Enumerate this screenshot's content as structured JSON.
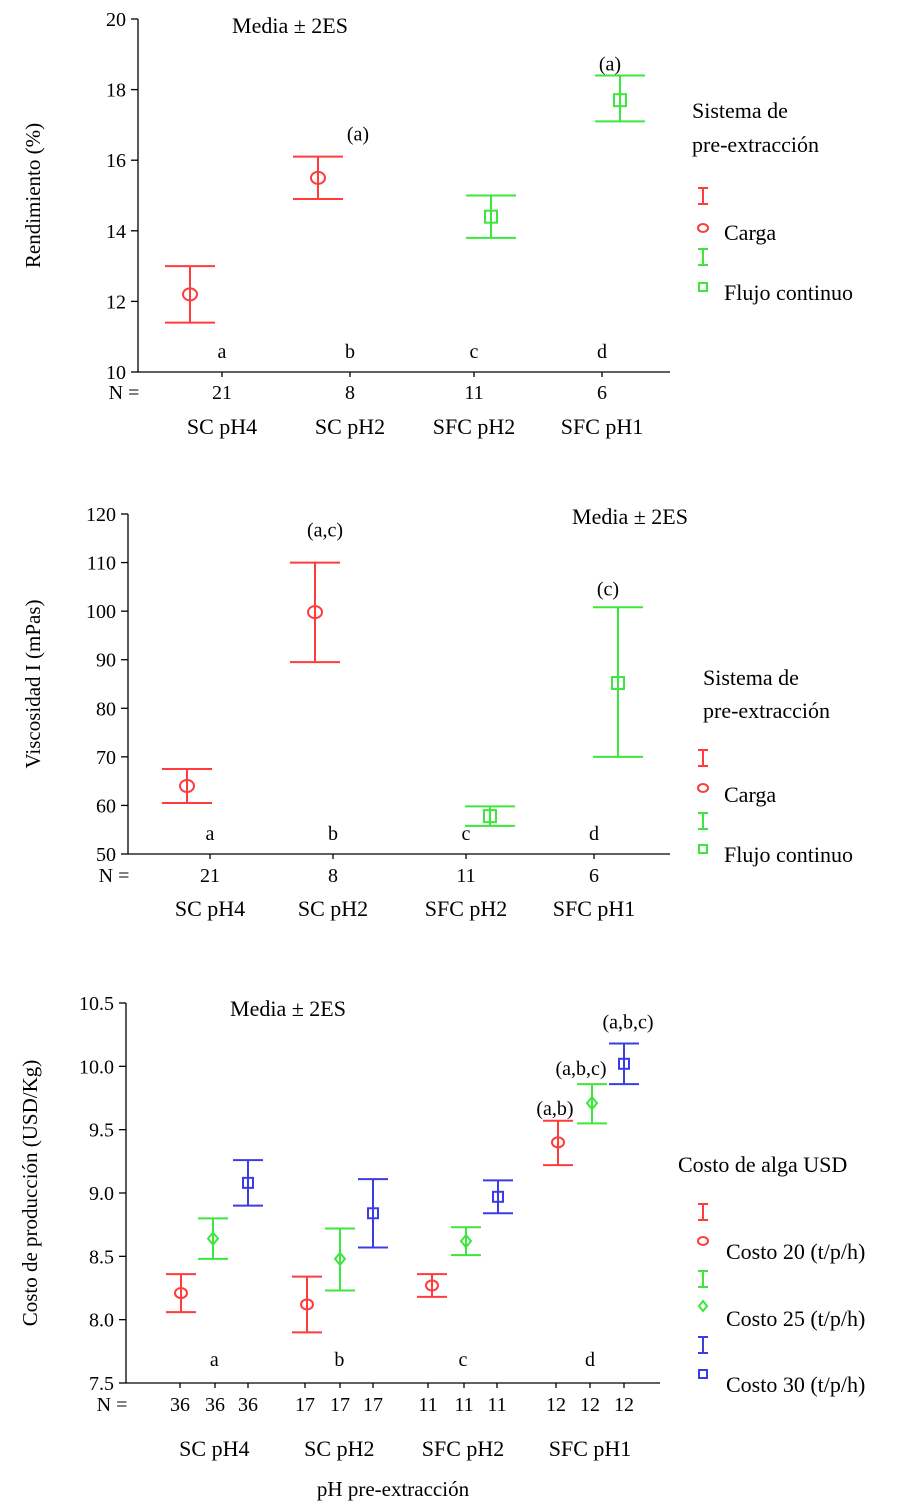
{
  "chart_data": [
    {
      "type": "errorbar",
      "annotation": "Media ± 2ES",
      "ylabel": "Rendimiento (%)",
      "ylim": [
        10,
        20
      ],
      "yticks": [
        "10",
        "12",
        "14",
        "16",
        "18",
        "20"
      ],
      "n_prefix": "N =",
      "categories": [
        "SC pH4",
        "SC pH2",
        "SFC pH2",
        "SFC pH1"
      ],
      "n": [
        "21",
        "8",
        "11",
        "6"
      ],
      "group_letters": [
        "a",
        "b",
        "c",
        "d"
      ],
      "legend_title": [
        "Sistema de",
        "pre-extracción"
      ],
      "series": [
        {
          "name": "Carga",
          "color": "#ff3b3b",
          "marker": "circle",
          "points": [
            {
              "cat": 0,
              "mean": 12.2,
              "lo": 11.4,
              "hi": 13.0,
              "label": ""
            },
            {
              "cat": 1,
              "mean": 15.5,
              "lo": 14.9,
              "hi": 16.1,
              "label": "(a)"
            }
          ]
        },
        {
          "name": "Flujo continuo",
          "color": "#3ce63c",
          "marker": "square",
          "points": [
            {
              "cat": 2,
              "mean": 14.4,
              "lo": 13.8,
              "hi": 15.0,
              "label": ""
            },
            {
              "cat": 3,
              "mean": 17.7,
              "lo": 17.1,
              "hi": 18.4,
              "label": "(a)"
            }
          ]
        }
      ]
    },
    {
      "type": "errorbar",
      "annotation": "Media ± 2ES",
      "ylabel": "Viscosidad I (mPas)",
      "ylim": [
        50,
        120
      ],
      "yticks": [
        "50",
        "60",
        "70",
        "80",
        "90",
        "100",
        "110",
        "120"
      ],
      "n_prefix": "N =",
      "categories": [
        "SC pH4",
        "SC pH2",
        "SFC pH2",
        "SFC pH1"
      ],
      "n": [
        "21",
        "8",
        "11",
        "6"
      ],
      "group_letters": [
        "a",
        "b",
        "c",
        "d"
      ],
      "legend_title": [
        "Sistema de",
        "pre-extracción"
      ],
      "series": [
        {
          "name": "Carga",
          "color": "#ff3b3b",
          "marker": "circle",
          "points": [
            {
              "cat": 0,
              "mean": 64.0,
              "lo": 60.5,
              "hi": 67.5,
              "label": ""
            },
            {
              "cat": 1,
              "mean": 99.8,
              "lo": 89.5,
              "hi": 110.0,
              "label": "(a,c)"
            }
          ]
        },
        {
          "name": "Flujo continuo",
          "color": "#3ce63c",
          "marker": "square",
          "points": [
            {
              "cat": 2,
              "mean": 57.8,
              "lo": 55.8,
              "hi": 59.8,
              "label": ""
            },
            {
              "cat": 3,
              "mean": 85.2,
              "lo": 70.0,
              "hi": 100.8,
              "label": "(c)"
            }
          ]
        }
      ]
    },
    {
      "type": "errorbar",
      "annotation": "Media ± 2ES",
      "ylabel": "Costo de producción (USD/Kg)",
      "xlabel": "pH pre-extracción",
      "ylim": [
        7.5,
        10.5
      ],
      "yticks": [
        "7.5",
        "8.0",
        "8.5",
        "9.0",
        "9.5",
        "10.0",
        "10.5"
      ],
      "n_prefix": "N =",
      "categories": [
        "SC pH4",
        "SC pH2",
        "SFC pH2",
        "SFC pH1"
      ],
      "n": [
        [
          "36",
          "36",
          "36"
        ],
        [
          "17",
          "17",
          "17"
        ],
        [
          "11",
          "11",
          "11"
        ],
        [
          "12",
          "12",
          "12"
        ]
      ],
      "group_letters": [
        "a",
        "b",
        "c",
        "d"
      ],
      "legend_title": [
        "Costo de alga USD"
      ],
      "series": [
        {
          "name": "Costo 20 (t/p/h)",
          "color": "#ff3b3b",
          "marker": "circle",
          "points": [
            {
              "cat": 0,
              "mean": 8.21,
              "lo": 8.06,
              "hi": 8.36,
              "label": ""
            },
            {
              "cat": 1,
              "mean": 8.12,
              "lo": 7.9,
              "hi": 8.34,
              "label": ""
            },
            {
              "cat": 2,
              "mean": 8.27,
              "lo": 8.18,
              "hi": 8.36,
              "label": ""
            },
            {
              "cat": 3,
              "mean": 9.4,
              "lo": 9.22,
              "hi": 9.57,
              "label": "(a,b)"
            }
          ]
        },
        {
          "name": "Costo 25 (t/p/h)",
          "color": "#3ce63c",
          "marker": "diamond",
          "points": [
            {
              "cat": 0,
              "mean": 8.64,
              "lo": 8.48,
              "hi": 8.8,
              "label": ""
            },
            {
              "cat": 1,
              "mean": 8.48,
              "lo": 8.23,
              "hi": 8.72,
              "label": ""
            },
            {
              "cat": 2,
              "mean": 8.62,
              "lo": 8.51,
              "hi": 8.73,
              "label": ""
            },
            {
              "cat": 3,
              "mean": 9.71,
              "lo": 9.55,
              "hi": 9.86,
              "label": "(a,b,c)"
            }
          ]
        },
        {
          "name": "Costo 30 (t/p/h)",
          "color": "#3c3ce6",
          "marker": "square",
          "points": [
            {
              "cat": 0,
              "mean": 9.08,
              "lo": 8.9,
              "hi": 9.26,
              "label": ""
            },
            {
              "cat": 1,
              "mean": 8.84,
              "lo": 8.57,
              "hi": 9.11,
              "label": ""
            },
            {
              "cat": 2,
              "mean": 8.97,
              "lo": 8.84,
              "hi": 9.1,
              "label": ""
            },
            {
              "cat": 3,
              "mean": 10.02,
              "lo": 9.86,
              "hi": 10.18,
              "label": "(a,b,c)"
            }
          ]
        }
      ]
    }
  ]
}
